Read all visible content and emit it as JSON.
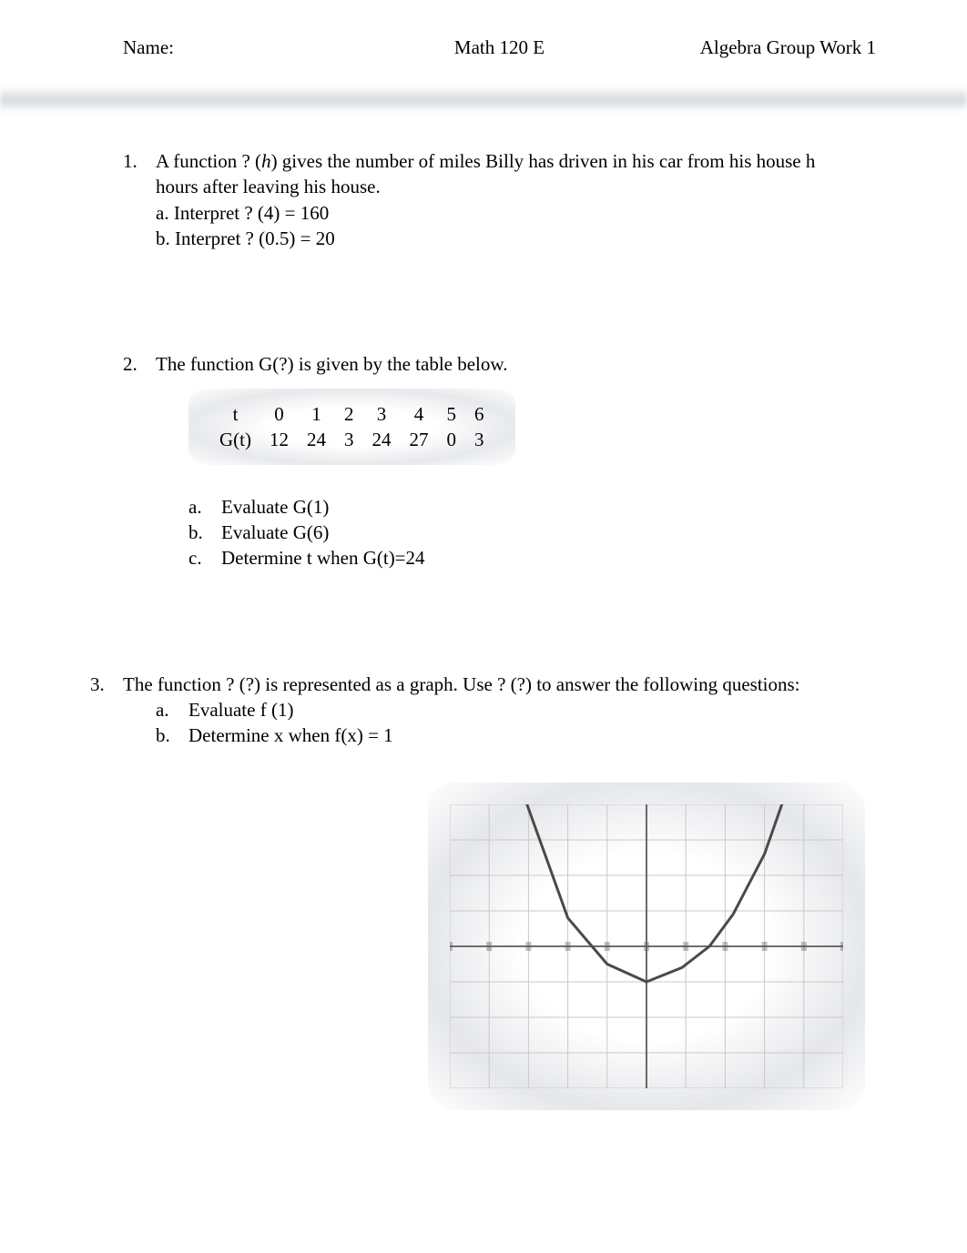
{
  "header": {
    "name_label": "Name:",
    "course": "Math 120 E",
    "assignment": "Algebra Group Work 1"
  },
  "p1": {
    "number": "1.",
    "text_line1": "A function ? (",
    "text_italic": "h",
    "text_line1_after": ") gives the number of miles Billy has driven in his car from his house h",
    "text_line2": "hours after leaving his house.",
    "a": "a. Interpret  ? (4) = 160",
    "b": "b. Interpret  ? (0.5) = 20"
  },
  "p2": {
    "number": "2.",
    "intro": "The function G(?) is given by the table below.",
    "table": {
      "row1_label": "t",
      "row1": [
        "0",
        "1",
        "2",
        "3",
        "4",
        "5",
        "6"
      ],
      "row2_label": "G(t)",
      "row2": [
        "12",
        "24",
        "3",
        "24",
        "27",
        "0",
        "3"
      ]
    },
    "a_letter": "a.",
    "a_text": "Evaluate G(1)",
    "b_letter": "b.",
    "b_text": "Evaluate G(6)",
    "c_letter": "c.",
    "c_text": "Determine t when G(t)=24"
  },
  "p3": {
    "number": "3.",
    "intro": "The function ? (?) is represented as a graph. Use  ? (?) to answer the following questions:",
    "a_letter": "a.",
    "a_text": "Evaluate f (1)",
    "b_letter": "b.",
    "b_text": "Determine x when f(x) = 1",
    "graph": {
      "type": "line",
      "background_color": "#ffffff",
      "grid_color": "#c9c9c9",
      "axis_color": "#5a5a5a",
      "curve_color": "#4a4a4a",
      "tick_color": "#4a4a4a",
      "xlim": [
        -5,
        5
      ],
      "ylim": [
        -4,
        4
      ],
      "xtick_step": 1,
      "ytick_step": 1,
      "curve_points": [
        [
          -3.2,
          4.5
        ],
        [
          -2.0,
          0.8
        ],
        [
          -1.0,
          -0.5
        ],
        [
          0.0,
          -1.0
        ],
        [
          0.9,
          -0.6
        ],
        [
          1.6,
          0.0
        ],
        [
          2.2,
          0.9
        ],
        [
          3.0,
          2.6
        ],
        [
          3.6,
          4.5
        ]
      ],
      "line_width": 3
    }
  }
}
